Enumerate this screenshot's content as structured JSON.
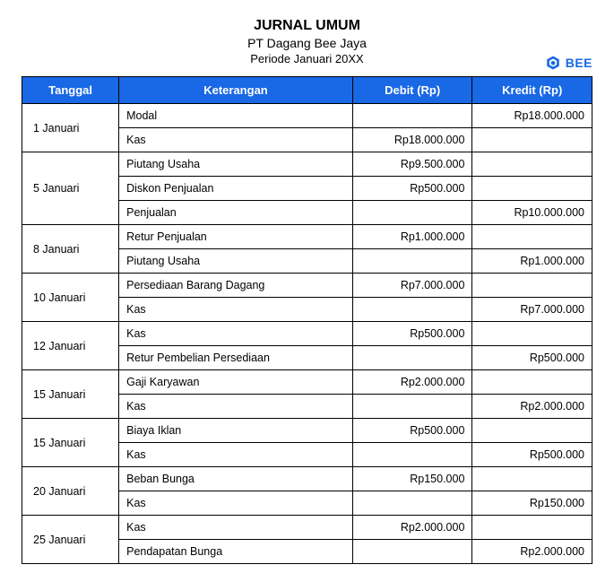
{
  "header": {
    "title": "JURNAL UMUM",
    "company": "PT Dagang Bee Jaya",
    "period": "Periode Januari 20XX",
    "brand": "BEE"
  },
  "table": {
    "columns": [
      "Tanggal",
      "Keterangan",
      "Debit (Rp)",
      "Kredit (Rp)"
    ],
    "header_bg": "#1968e5",
    "header_fg": "#ffffff",
    "border_color": "#000000",
    "groups": [
      {
        "date": "1 Januari",
        "rows": [
          {
            "desc": "Modal",
            "debit": "",
            "credit": "Rp18.000.000"
          },
          {
            "desc": "Kas",
            "debit": "Rp18.000.000",
            "credit": ""
          }
        ]
      },
      {
        "date": "5 Januari",
        "rows": [
          {
            "desc": "Piutang Usaha",
            "debit": "Rp9.500.000",
            "credit": ""
          },
          {
            "desc": "Diskon Penjualan",
            "debit": "Rp500.000",
            "credit": ""
          },
          {
            "desc": "Penjualan",
            "debit": "",
            "credit": "Rp10.000.000"
          }
        ]
      },
      {
        "date": "8 Januari",
        "rows": [
          {
            "desc": "Retur Penjualan",
            "debit": "Rp1.000.000",
            "credit": ""
          },
          {
            "desc": "Piutang Usaha",
            "debit": "",
            "credit": "Rp1.000.000"
          }
        ]
      },
      {
        "date": "10 Januari",
        "rows": [
          {
            "desc": "Persediaan Barang Dagang",
            "debit": "Rp7.000.000",
            "credit": ""
          },
          {
            "desc": "Kas",
            "debit": "",
            "credit": "Rp7.000.000"
          }
        ]
      },
      {
        "date": "12 Januari",
        "rows": [
          {
            "desc": "Kas",
            "debit": "Rp500.000",
            "credit": ""
          },
          {
            "desc": "Retur Pembelian Persediaan",
            "debit": "",
            "credit": "Rp500.000"
          }
        ]
      },
      {
        "date": "15 Januari",
        "rows": [
          {
            "desc": "Gaji Karyawan",
            "debit": "Rp2.000.000",
            "credit": ""
          },
          {
            "desc": "Kas",
            "debit": "",
            "credit": "Rp2.000.000"
          }
        ]
      },
      {
        "date": "15 Januari",
        "rows": [
          {
            "desc": "Biaya Iklan",
            "debit": "Rp500.000",
            "credit": ""
          },
          {
            "desc": "Kas",
            "debit": "",
            "credit": "Rp500.000"
          }
        ]
      },
      {
        "date": "20 Januari",
        "rows": [
          {
            "desc": "Beban Bunga",
            "debit": "Rp150.000",
            "credit": ""
          },
          {
            "desc": "Kas",
            "debit": "",
            "credit": "Rp150.000"
          }
        ]
      },
      {
        "date": "25 Januari",
        "rows": [
          {
            "desc": "Kas",
            "debit": "Rp2.000.000",
            "credit": ""
          },
          {
            "desc": "Pendapatan Bunga",
            "debit": "",
            "credit": "Rp2.000.000"
          }
        ]
      }
    ]
  }
}
